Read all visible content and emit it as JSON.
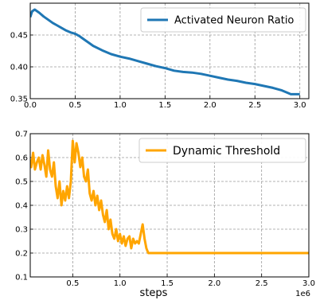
{
  "chart_data": [
    {
      "type": "line",
      "series": [
        {
          "name": "Activated Neuron Ratio",
          "color": "#1f77b4",
          "x": [
            0.0,
            0.02,
            0.05,
            0.1,
            0.15,
            0.2,
            0.25,
            0.3,
            0.35,
            0.4,
            0.45,
            0.5,
            0.55,
            0.6,
            0.65,
            0.7,
            0.8,
            0.9,
            1.0,
            1.1,
            1.2,
            1.3,
            1.4,
            1.5,
            1.6,
            1.7,
            1.8,
            1.9,
            2.0,
            2.1,
            2.2,
            2.3,
            2.4,
            2.5,
            2.6,
            2.7,
            2.8,
            2.85,
            2.9,
            2.95,
            3.0
          ],
          "y": [
            0.478,
            0.487,
            0.49,
            0.485,
            0.479,
            0.474,
            0.469,
            0.465,
            0.461,
            0.457,
            0.454,
            0.452,
            0.448,
            0.443,
            0.438,
            0.433,
            0.426,
            0.42,
            0.416,
            0.413,
            0.409,
            0.405,
            0.401,
            0.398,
            0.394,
            0.392,
            0.391,
            0.389,
            0.386,
            0.383,
            0.38,
            0.378,
            0.375,
            0.373,
            0.37,
            0.367,
            0.363,
            0.36,
            0.357,
            0.357,
            0.357
          ]
        }
      ],
      "xlim": [
        0.0,
        3.1
      ],
      "ylim": [
        0.35,
        0.5
      ],
      "xticks": [
        "0.0",
        "0.5",
        "1.0",
        "1.5",
        "2.0",
        "2.5",
        "3.0"
      ],
      "yticks": [
        "0.35",
        "0.40",
        "0.45"
      ],
      "grid": true,
      "legend_position": "top-right"
    },
    {
      "type": "line",
      "series": [
        {
          "name": "Dynamic Threshold",
          "color": "#ffa500",
          "x": [
            0.0,
            0.02,
            0.04,
            0.06,
            0.08,
            0.1,
            0.12,
            0.14,
            0.16,
            0.18,
            0.2,
            0.22,
            0.24,
            0.26,
            0.28,
            0.3,
            0.32,
            0.34,
            0.36,
            0.38,
            0.4,
            0.42,
            0.44,
            0.46,
            0.48,
            0.5,
            0.52,
            0.54,
            0.56,
            0.58,
            0.6,
            0.62,
            0.64,
            0.66,
            0.68,
            0.7,
            0.72,
            0.74,
            0.76,
            0.78,
            0.8,
            0.82,
            0.84,
            0.86,
            0.88,
            0.9,
            0.92,
            0.94,
            0.96,
            0.98,
            1.0,
            1.02,
            1.04,
            1.06,
            1.08,
            1.1,
            1.12,
            1.14,
            1.16,
            1.18,
            1.2,
            1.22,
            1.24,
            1.26,
            1.28,
            1.3,
            1.5,
            2.0,
            2.5,
            3.0
          ],
          "y": [
            0.5,
            0.66,
            0.6,
            0.56,
            0.62,
            0.55,
            0.58,
            0.6,
            0.55,
            0.61,
            0.57,
            0.52,
            0.63,
            0.55,
            0.52,
            0.58,
            0.48,
            0.43,
            0.5,
            0.4,
            0.46,
            0.42,
            0.48,
            0.43,
            0.5,
            0.67,
            0.58,
            0.66,
            0.62,
            0.56,
            0.6,
            0.52,
            0.5,
            0.55,
            0.45,
            0.42,
            0.46,
            0.4,
            0.44,
            0.38,
            0.42,
            0.36,
            0.33,
            0.38,
            0.3,
            0.34,
            0.28,
            0.26,
            0.3,
            0.25,
            0.28,
            0.24,
            0.27,
            0.23,
            0.26,
            0.27,
            0.22,
            0.26,
            0.24,
            0.25,
            0.24,
            0.28,
            0.32,
            0.26,
            0.22,
            0.2,
            0.2,
            0.2,
            0.2,
            0.2
          ]
        }
      ],
      "xlim": [
        0.05,
        3.0
      ],
      "ylim": [
        0.1,
        0.7
      ],
      "xticks": [
        "0.5",
        "1.0",
        "1.5",
        "2.0",
        "2.5",
        "3.0"
      ],
      "yticks": [
        "0.1",
        "0.2",
        "0.3",
        "0.4",
        "0.5",
        "0.6",
        "0.7"
      ],
      "xlabel": "steps",
      "x_multiplier": "1e6",
      "grid": true,
      "legend_position": "top-right"
    }
  ]
}
